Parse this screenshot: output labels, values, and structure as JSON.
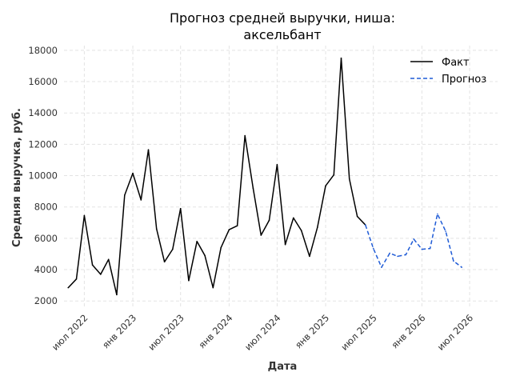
{
  "chart_data": {
    "type": "line",
    "title_lines": [
      "Прогноз средней выручки, ниша:",
      "аксельбант"
    ],
    "xlabel": "Дата",
    "ylabel": "Средняя выручка, руб.",
    "x_ticks": [
      {
        "label": "июл 2022",
        "date": "2022-07-01"
      },
      {
        "label": "янв 2023",
        "date": "2023-01-01"
      },
      {
        "label": "июл 2023",
        "date": "2023-07-01"
      },
      {
        "label": "янв 2024",
        "date": "2024-01-01"
      },
      {
        "label": "июл 2024",
        "date": "2024-07-01"
      },
      {
        "label": "янв 2025",
        "date": "2025-01-01"
      },
      {
        "label": "июл 2025",
        "date": "2025-07-01"
      },
      {
        "label": "янв 2026",
        "date": "2026-01-01"
      },
      {
        "label": "июл 2026",
        "date": "2026-07-01"
      }
    ],
    "y_ticks": [
      2000,
      4000,
      6000,
      8000,
      10000,
      12000,
      14000,
      16000,
      18000
    ],
    "y_tick_labels": [
      "2000",
      "4000",
      "6000",
      "8000",
      "10000",
      "12000",
      "14000",
      "16000",
      "18000"
    ],
    "xlim": [
      "2022-04-15",
      "2026-10-15"
    ],
    "ylim": [
      1500,
      18300
    ],
    "grid": true,
    "legend_position": "top-right",
    "series": [
      {
        "name": "Факт",
        "style": "solid",
        "color": "#000000",
        "points": [
          {
            "x": "2022-05-01",
            "y": 2850
          },
          {
            "x": "2022-06-01",
            "y": 3400
          },
          {
            "x": "2022-07-01",
            "y": 7450
          },
          {
            "x": "2022-08-01",
            "y": 4300
          },
          {
            "x": "2022-09-01",
            "y": 3700
          },
          {
            "x": "2022-10-01",
            "y": 4650
          },
          {
            "x": "2022-11-01",
            "y": 2400
          },
          {
            "x": "2022-12-01",
            "y": 8750
          },
          {
            "x": "2023-01-01",
            "y": 10150
          },
          {
            "x": "2023-02-01",
            "y": 8450
          },
          {
            "x": "2023-03-01",
            "y": 11650
          },
          {
            "x": "2023-04-01",
            "y": 6600
          },
          {
            "x": "2023-05-01",
            "y": 4500
          },
          {
            "x": "2023-06-01",
            "y": 5300
          },
          {
            "x": "2023-07-01",
            "y": 7900
          },
          {
            "x": "2023-08-01",
            "y": 3300
          },
          {
            "x": "2023-09-01",
            "y": 5800
          },
          {
            "x": "2023-10-01",
            "y": 4900
          },
          {
            "x": "2023-11-01",
            "y": 2850
          },
          {
            "x": "2023-12-01",
            "y": 5400
          },
          {
            "x": "2024-01-01",
            "y": 6550
          },
          {
            "x": "2024-02-01",
            "y": 6800
          },
          {
            "x": "2024-03-01",
            "y": 12550
          },
          {
            "x": "2024-04-01",
            "y": 9200
          },
          {
            "x": "2024-05-01",
            "y": 6200
          },
          {
            "x": "2024-06-01",
            "y": 7150
          },
          {
            "x": "2024-07-01",
            "y": 10700
          },
          {
            "x": "2024-08-01",
            "y": 5600
          },
          {
            "x": "2024-09-01",
            "y": 7300
          },
          {
            "x": "2024-10-01",
            "y": 6500
          },
          {
            "x": "2024-11-01",
            "y": 4850
          },
          {
            "x": "2024-12-01",
            "y": 6700
          },
          {
            "x": "2025-01-01",
            "y": 9350
          },
          {
            "x": "2025-02-01",
            "y": 10050
          },
          {
            "x": "2025-03-01",
            "y": 17500
          },
          {
            "x": "2025-04-01",
            "y": 9800
          },
          {
            "x": "2025-05-01",
            "y": 7400
          },
          {
            "x": "2025-06-01",
            "y": 6850
          }
        ]
      },
      {
        "name": "Прогноз",
        "style": "dashed",
        "color": "#1f5bd6",
        "points": [
          {
            "x": "2025-06-01",
            "y": 6850
          },
          {
            "x": "2025-07-01",
            "y": 5350
          },
          {
            "x": "2025-08-01",
            "y": 4150
          },
          {
            "x": "2025-09-01",
            "y": 5050
          },
          {
            "x": "2025-10-01",
            "y": 4850
          },
          {
            "x": "2025-11-01",
            "y": 4950
          },
          {
            "x": "2025-12-01",
            "y": 5950
          },
          {
            "x": "2026-01-01",
            "y": 5300
          },
          {
            "x": "2026-02-01",
            "y": 5350
          },
          {
            "x": "2026-03-01",
            "y": 7550
          },
          {
            "x": "2026-04-01",
            "y": 6450
          },
          {
            "x": "2026-05-01",
            "y": 4550
          },
          {
            "x": "2026-06-01",
            "y": 4150
          }
        ]
      }
    ]
  }
}
